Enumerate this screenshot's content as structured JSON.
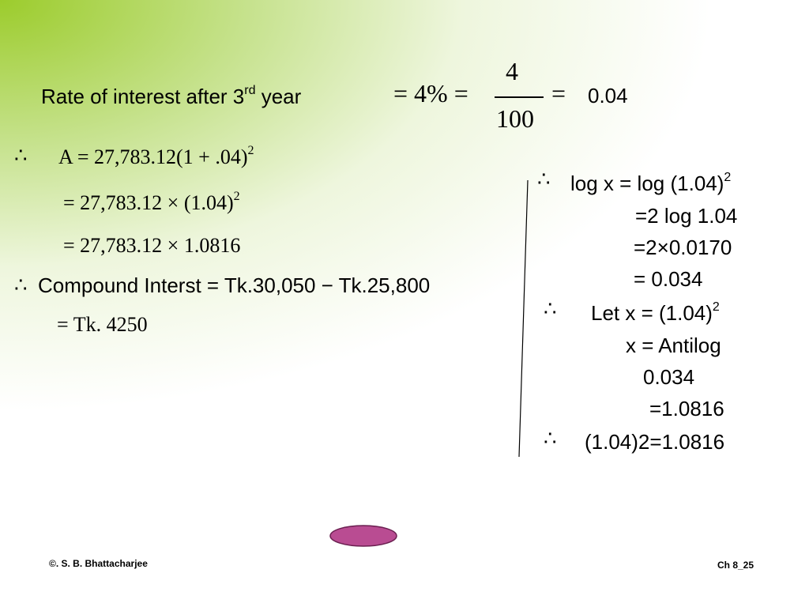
{
  "heading": {
    "text": "Rate of interest after 3",
    "sup": "rd",
    "tail": "year",
    "eq1": "= 4% =",
    "numerator": "4",
    "denominator": "100",
    "eq2": "=",
    "result": "0.04"
  },
  "left": [
    {
      "mark": "∴",
      "text": "A = 27,783.12(1 + .04)",
      "sup": "2"
    },
    {
      "text": "= 27,783.12 × (1.04)",
      "sup": "2"
    },
    {
      "text": "= 27,783.12 × 1.0816"
    },
    {
      "mark": "∴",
      "text": "Compound  Interst = Tk.30,050 − Tk.25,800"
    },
    {
      "text": "= Tk. 4250"
    }
  ],
  "right": [
    {
      "mark": "∴",
      "text": "log x = log (1.04)",
      "sup": "2"
    },
    {
      "text": "=2 log 1.04"
    },
    {
      "text": "=2×0.0170"
    },
    {
      "text": "= 0.034"
    },
    {
      "mark": "∴",
      "text": "Let x = (1.04)",
      "sup": "2"
    },
    {
      "text": "x = Antilog"
    },
    {
      "text": "0.034"
    },
    {
      "text": "=1.0816"
    },
    {
      "mark": "∴",
      "text": "(1.04)2=1.0816"
    }
  ],
  "footer": {
    "left": "©. S. B. Bhattacharjee",
    "right": "Ch 8_25"
  }
}
